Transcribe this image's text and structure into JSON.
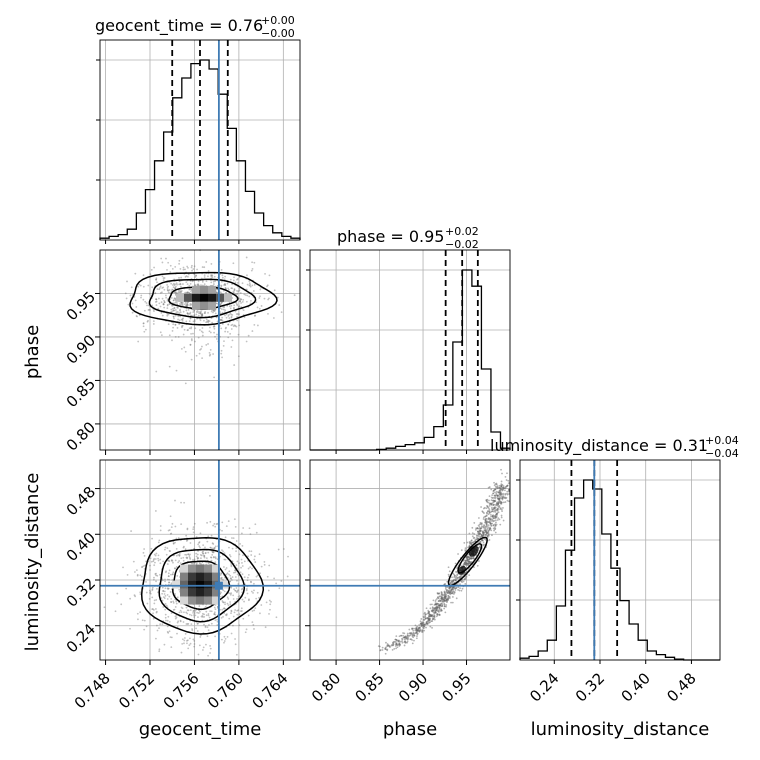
{
  "chart_data": {
    "type": "corner",
    "parameters": [
      {
        "key": "geocent_time",
        "label": "geocent_time",
        "title": "geocent_time = 0.76",
        "sup": "+0.00",
        "sub": "−0.00",
        "median": 0.7565,
        "q_low": 0.754,
        "q_high": 0.759,
        "truth": 0.7582,
        "range": [
          0.7475,
          0.7655
        ],
        "ticks": [
          "0.748",
          "0.752",
          "0.756",
          "0.760",
          "0.764"
        ],
        "tick_values": [
          0.748,
          0.752,
          0.756,
          0.76,
          0.764
        ],
        "hist": [
          0.01,
          0.02,
          0.03,
          0.06,
          0.15,
          0.28,
          0.44,
          0.6,
          0.79,
          0.9,
          0.98,
          1.0,
          0.95,
          0.81,
          0.62,
          0.44,
          0.27,
          0.15,
          0.08,
          0.04,
          0.02,
          0.01
        ]
      },
      {
        "key": "phase",
        "label": "phase",
        "title": "phase = 0.95",
        "sup": "+0.02",
        "sub": "−0.02",
        "median": 0.945,
        "q_low": 0.926,
        "q_high": 0.963,
        "truth": null,
        "range": [
          0.77,
          1.0
        ],
        "ticks": [
          "0.80",
          "0.85",
          "0.90",
          "0.95"
        ],
        "tick_values": [
          0.8,
          0.85,
          0.9,
          0.95
        ],
        "hist": [
          0.0,
          0.0,
          0.0,
          0.0,
          0.0,
          0.0,
          0.0,
          0.003,
          0.01,
          0.02,
          0.03,
          0.04,
          0.07,
          0.13,
          0.25,
          0.6,
          1.0,
          0.91,
          0.45,
          0.1,
          0.01
        ]
      },
      {
        "key": "luminosity_distance",
        "label": "luminosity_distance",
        "title": "luminosity_distance = 0.31",
        "sup": "+0.04",
        "sub": "−0.04",
        "median": 0.31,
        "q_low": 0.27,
        "q_high": 0.35,
        "truth": 0.31,
        "range": [
          0.18,
          0.53
        ],
        "ticks": [
          "0.24",
          "0.32",
          "0.40",
          "0.48"
        ],
        "tick_values": [
          0.24,
          0.32,
          0.4,
          0.48
        ],
        "hist": [
          0.01,
          0.02,
          0.05,
          0.11,
          0.3,
          0.61,
          0.9,
          1.0,
          0.95,
          0.7,
          0.51,
          0.33,
          0.2,
          0.11,
          0.05,
          0.03,
          0.015,
          0.005,
          0.0,
          0.0,
          0.0,
          0.0
        ]
      }
    ],
    "axis_labels": {
      "phase_y": "phase",
      "luminosity_distance_y": "luminosity_distance"
    },
    "truth_color": "#3f7bb4",
    "grid": true
  }
}
